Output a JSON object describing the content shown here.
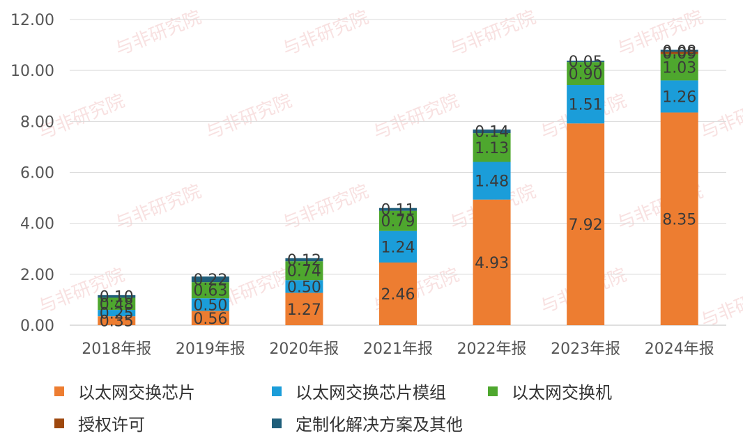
{
  "chart_data": {
    "type": "bar",
    "stacked": true,
    "categories": [
      "2018年报",
      "2019年报",
      "2020年报",
      "2021年报",
      "2022年报",
      "2023年报",
      "2024年报"
    ],
    "series": [
      {
        "name": "以太网交换芯片",
        "color": "#ED7D31",
        "values": [
          0.35,
          0.56,
          1.27,
          2.46,
          4.93,
          7.92,
          8.35
        ]
      },
      {
        "name": "以太网交换芯片模组",
        "color": "#1B9DD9",
        "values": [
          0.25,
          0.5,
          0.5,
          1.24,
          1.48,
          1.51,
          1.26
        ]
      },
      {
        "name": "以太网交换机",
        "color": "#4EA72E",
        "values": [
          0.48,
          0.63,
          0.74,
          0.79,
          1.13,
          0.9,
          1.03
        ]
      },
      {
        "name": "授权许可",
        "color": "#9E480E",
        "values": [
          0.0,
          0.0,
          0.0,
          0.0,
          0.0,
          0.0,
          0.09
        ]
      },
      {
        "name": "定制化解决方案及其他",
        "color": "#1F5E7A",
        "values": [
          0.1,
          0.22,
          0.12,
          0.11,
          0.14,
          0.05,
          0.08
        ]
      }
    ],
    "data_labels": [
      [
        "0.35",
        "0.56",
        "1.27",
        "2.46",
        "4.93",
        "7.92",
        "8.35"
      ],
      [
        "0.25",
        "0.50",
        "0.50",
        "1.24",
        "1.48",
        "1.51",
        "1.26"
      ],
      [
        "0.48",
        "0.63",
        "0.74",
        "0.79",
        "1.13",
        "0.90",
        "1.03"
      ],
      [
        "",
        "",
        "",
        "",
        "",
        "",
        "0.09"
      ],
      [
        "0.10",
        "0.22",
        "0.12",
        "0.11",
        "0.14",
        "0.05",
        "0.08"
      ]
    ],
    "ylim": [
      0,
      12
    ],
    "yticks": [
      "0.00",
      "2.00",
      "4.00",
      "6.00",
      "8.00",
      "10.00",
      "12.00"
    ],
    "ytick_values": [
      0,
      2,
      4,
      6,
      8,
      10,
      12
    ],
    "grid": true,
    "legend_position": "bottom",
    "title": "",
    "xlabel": "",
    "ylabel": ""
  },
  "watermark_text": "与非研究院"
}
